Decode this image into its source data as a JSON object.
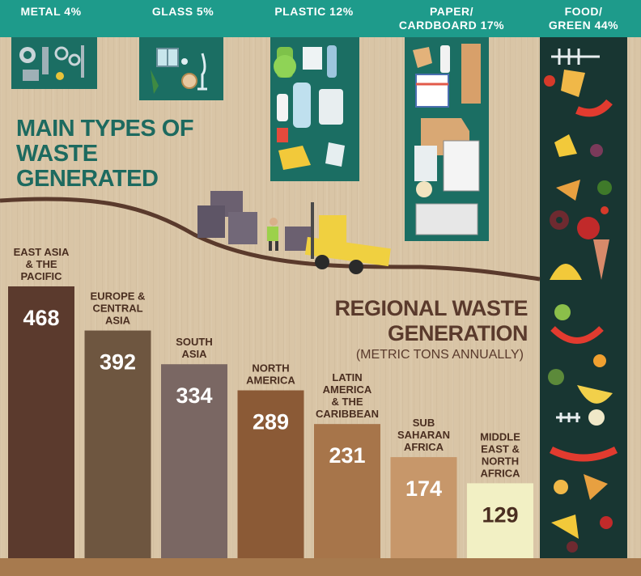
{
  "waste_types": [
    {
      "label": "METAL 4%",
      "icon": "metal-icon"
    },
    {
      "label": "GLASS 5%",
      "icon": "glass-icon"
    },
    {
      "label": "PLASTIC 12%",
      "icon": "plastic-icon"
    },
    {
      "label": "PAPER/\nCARDBOARD 17%",
      "icon": "paper-icon"
    },
    {
      "label": "FOOD/\nGREEN 44%",
      "icon": "food-icon"
    }
  ],
  "main_title": "MAIN TYPES OF WASTE GENERATED",
  "regional_title": "REGIONAL WASTE GENERATION",
  "regional_subtitle": "(METRIC TONS ANNUALLY)",
  "colors": {
    "teal": "#1e9b8b",
    "dark_teal": "#1b6e63",
    "background": "#d9c5a6"
  },
  "chart_data": {
    "type": "bar",
    "title": "REGIONAL WASTE GENERATION",
    "subtitle": "(METRIC TONS ANNUALLY)",
    "categories": [
      "EAST ASIA & THE PACIFIC",
      "EUROPE & CENTRAL ASIA",
      "SOUTH ASIA",
      "NORTH AMERICA",
      "LATIN AMERICA & THE CARIBBEAN",
      "SUB SAHARAN AFRICA",
      "MIDDLE EAST & NORTH AFRICA"
    ],
    "category_lines": [
      [
        "EAST ASIA",
        "& THE",
        "PACIFIC"
      ],
      [
        "EUROPE &",
        "CENTRAL",
        "ASIA"
      ],
      [
        "SOUTH",
        "ASIA"
      ],
      [
        "NORTH",
        "AMERICA"
      ],
      [
        "LATIN",
        "AMERICA",
        "& THE",
        "CARIBBEAN"
      ],
      [
        "SUB",
        "SAHARAN",
        "AFRICA"
      ],
      [
        "MIDDLE",
        "EAST &",
        "NORTH",
        "AFRICA"
      ]
    ],
    "values": [
      468,
      392,
      334,
      289,
      231,
      174,
      129
    ],
    "bar_colors": [
      "#5b3a2d",
      "#6e5640",
      "#7a6763",
      "#8b5a36",
      "#a7754a",
      "#c7976a",
      "#f2f0c4"
    ],
    "ylim": [
      0,
      500
    ],
    "grid": false
  }
}
